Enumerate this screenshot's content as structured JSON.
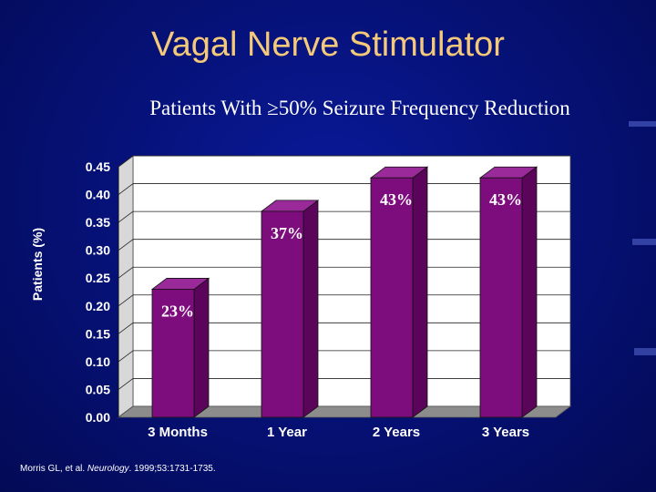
{
  "slide": {
    "title": "Vagal Nerve Stimulator",
    "subtitle": "Patients With ≥50% Seizure Frequency Reduction"
  },
  "footnote": {
    "authors": "Morris GL, et al.",
    "journal": "Neurology",
    "details": ". 1999;53:1731-1735."
  },
  "colors": {
    "background": "#06127a",
    "title": "#f5c97a",
    "bar_front": "#7d0c7d",
    "bar_side": "#5a055a",
    "bar_top": "#9a2a9a",
    "plot_wall": "#ffffff",
    "floor": "#8c8c8c"
  },
  "chart_data": {
    "type": "bar",
    "categories": [
      "3 Months",
      "1 Year",
      "2 Years",
      "3 Years"
    ],
    "values": [
      0.23,
      0.37,
      0.43,
      0.43
    ],
    "data_labels": [
      "23%",
      "37%",
      "43%",
      "43%"
    ],
    "ylabel": "Patients (%)",
    "ylim": [
      0,
      0.45
    ],
    "y_ticks": [
      "0.00",
      "0.05",
      "0.10",
      "0.15",
      "0.20",
      "0.25",
      "0.30",
      "0.35",
      "0.40",
      "0.45"
    ],
    "grid": true,
    "legend": "none",
    "style": "3d"
  }
}
